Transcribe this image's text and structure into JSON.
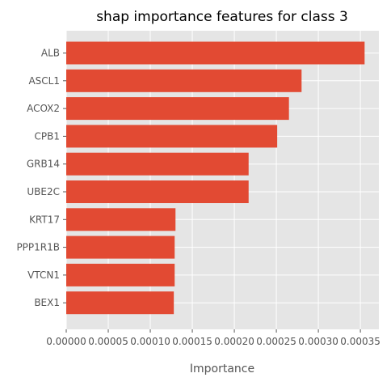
{
  "chart_data": {
    "type": "bar",
    "orientation": "horizontal",
    "title": "shap importance features for class 3",
    "xlabel": "Importance",
    "ylabel": "",
    "categories": [
      "ALB",
      "ASCL1",
      "ACOX2",
      "CPB1",
      "GRB14",
      "UBE2C",
      "KRT17",
      "PPP1R1B",
      "VTCN1",
      "BEX1"
    ],
    "values": [
      0.000355,
      0.00028,
      0.000265,
      0.000251,
      0.000217,
      0.000217,
      0.00013,
      0.000129,
      0.000129,
      0.000128
    ],
    "xlim": [
      0,
      0.000372
    ],
    "xticks": [
      {
        "value": 0.0,
        "label": "0.00000"
      },
      {
        "value": 5e-05,
        "label": "0.00005"
      },
      {
        "value": 0.0001,
        "label": "0.00010"
      },
      {
        "value": 0.00015,
        "label": "0.00015"
      },
      {
        "value": 0.0002,
        "label": "0.00020"
      },
      {
        "value": 0.00025,
        "label": "0.00025"
      },
      {
        "value": 0.0003,
        "label": "0.00030"
      },
      {
        "value": 0.00035,
        "label": "0.00035"
      }
    ],
    "bar_color": "#E24A33",
    "background_color": "#E5E5E5",
    "grid": true
  }
}
